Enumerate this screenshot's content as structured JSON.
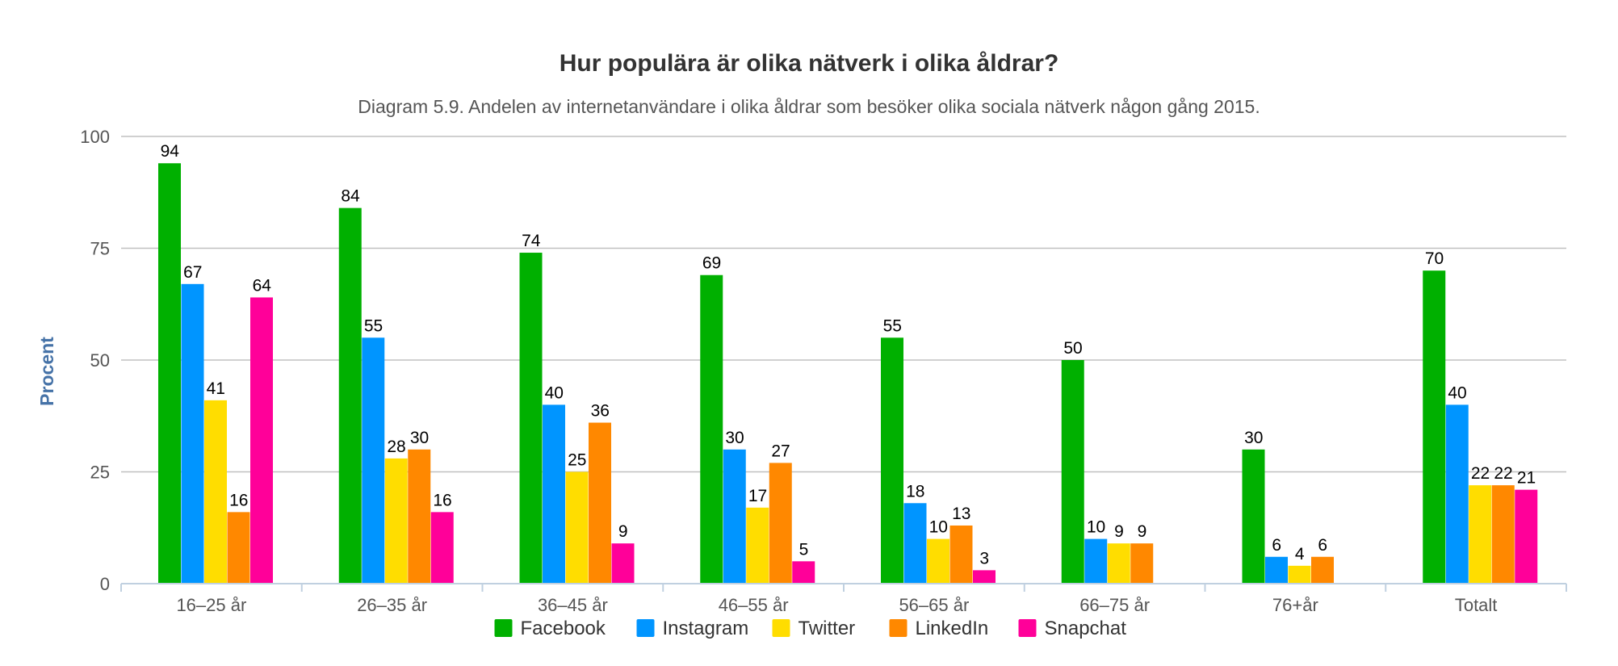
{
  "chart_data": {
    "type": "bar",
    "title": "Hur populära är olika nätverk i olika åldrar?",
    "subtitle": "Diagram 5.9. Andelen av internetanvändare i olika åldrar som besöker olika sociala nätverk någon gång 2015.",
    "xlabel": "",
    "ylabel": "Procent",
    "ylim": [
      0,
      100
    ],
    "yticks": [
      "0",
      "25",
      "50",
      "75",
      "100"
    ],
    "grid": true,
    "legend_position": "bottom",
    "categories": [
      "16–25 år",
      "26–35 år",
      "36–45 år",
      "46–55 år",
      "56–65 år",
      "66–75 år",
      "76+år",
      "Totalt"
    ],
    "series": [
      {
        "name": "Facebook",
        "color": "#00B000",
        "values": [
          94,
          84,
          74,
          69,
          55,
          50,
          30,
          70
        ]
      },
      {
        "name": "Instagram",
        "color": "#0095FF",
        "values": [
          67,
          55,
          40,
          30,
          18,
          10,
          6,
          40
        ]
      },
      {
        "name": "Twitter",
        "color": "#FFDD00",
        "values": [
          41,
          28,
          25,
          17,
          10,
          9,
          4,
          22
        ]
      },
      {
        "name": "LinkedIn",
        "color": "#FF8800",
        "values": [
          16,
          30,
          36,
          27,
          13,
          9,
          6,
          22
        ]
      },
      {
        "name": "Snapchat",
        "color": "#FF0099",
        "values": [
          64,
          16,
          9,
          5,
          3,
          null,
          null,
          21
        ]
      }
    ],
    "data_labels": true
  }
}
